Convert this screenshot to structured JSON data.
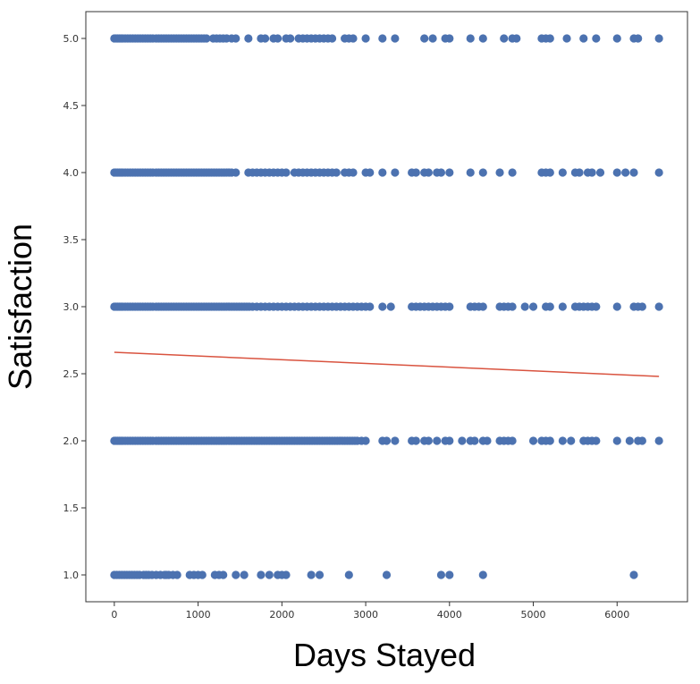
{
  "chart_data": {
    "type": "scatter",
    "title": "",
    "xlabel": "Days Stayed",
    "ylabel": "Satisfaction",
    "xlim": [
      -340,
      6840
    ],
    "ylim": [
      0.8,
      5.2
    ],
    "xticks": [
      0,
      1000,
      2000,
      3000,
      4000,
      5000,
      6000
    ],
    "xtick_labels": [
      "0",
      "1000",
      "2000",
      "3000",
      "4000",
      "5000",
      "6000"
    ],
    "yticks": [
      1.0,
      1.5,
      2.0,
      2.5,
      3.0,
      3.5,
      4.0,
      4.5,
      5.0
    ],
    "ytick_labels": [
      "1.0",
      "1.5",
      "2.0",
      "2.5",
      "3.0",
      "3.5",
      "4.0",
      "4.5",
      "5.0"
    ],
    "grid": false,
    "marker_color": "#4c72b0",
    "line_color": "#d9533f",
    "series": [
      {
        "y": 5,
        "x": [
          0,
          20,
          40,
          60,
          80,
          100,
          130,
          160,
          190,
          220,
          250,
          280,
          310,
          340,
          370,
          400,
          430,
          460,
          500,
          530,
          560,
          590,
          620,
          650,
          680,
          710,
          740,
          770,
          800,
          830,
          860,
          890,
          920,
          950,
          980,
          1010,
          1040,
          1070,
          1100,
          1180,
          1220,
          1260,
          1300,
          1340,
          1400,
          1450,
          1600,
          1750,
          1800,
          1900,
          1950,
          2050,
          2100,
          2200,
          2250,
          2300,
          2350,
          2400,
          2450,
          2500,
          2550,
          2600,
          2750,
          2800,
          2850,
          3000,
          3200,
          3350,
          3700,
          3800,
          3950,
          4000,
          4250,
          4400,
          4650,
          4750,
          4800,
          5100,
          5150,
          5200,
          5400,
          5600,
          5750,
          6000,
          6200,
          6250,
          6500
        ]
      },
      {
        "y": 4,
        "x": [
          0,
          20,
          40,
          60,
          80,
          100,
          130,
          160,
          190,
          220,
          250,
          280,
          310,
          340,
          370,
          400,
          430,
          460,
          500,
          530,
          560,
          590,
          620,
          650,
          680,
          710,
          740,
          770,
          800,
          830,
          860,
          890,
          920,
          950,
          980,
          1010,
          1040,
          1070,
          1100,
          1130,
          1160,
          1190,
          1220,
          1250,
          1280,
          1310,
          1340,
          1370,
          1400,
          1450,
          1600,
          1650,
          1700,
          1750,
          1800,
          1850,
          1900,
          1950,
          2000,
          2050,
          2150,
          2200,
          2250,
          2300,
          2350,
          2400,
          2450,
          2500,
          2550,
          2600,
          2650,
          2750,
          2800,
          2850,
          3000,
          3050,
          3200,
          3350,
          3550,
          3600,
          3700,
          3750,
          3850,
          3900,
          4000,
          4250,
          4400,
          4600,
          4750,
          5100,
          5150,
          5200,
          5350,
          5500,
          5550,
          5650,
          5700,
          5800,
          6000,
          6100,
          6200,
          6500
        ]
      },
      {
        "y": 3,
        "x": [
          0,
          20,
          40,
          60,
          80,
          100,
          130,
          160,
          190,
          220,
          250,
          280,
          310,
          340,
          370,
          400,
          430,
          460,
          500,
          530,
          560,
          590,
          620,
          650,
          680,
          710,
          740,
          770,
          800,
          830,
          860,
          890,
          920,
          950,
          980,
          1010,
          1040,
          1070,
          1100,
          1130,
          1160,
          1190,
          1220,
          1250,
          1280,
          1310,
          1340,
          1370,
          1400,
          1430,
          1460,
          1490,
          1520,
          1550,
          1580,
          1610,
          1650,
          1700,
          1750,
          1800,
          1850,
          1900,
          1950,
          2000,
          2050,
          2100,
          2150,
          2200,
          2250,
          2300,
          2350,
          2400,
          2450,
          2500,
          2550,
          2600,
          2650,
          2700,
          2750,
          2800,
          2850,
          2900,
          2950,
          3000,
          3050,
          3200,
          3300,
          3550,
          3600,
          3650,
          3700,
          3750,
          3800,
          3850,
          3900,
          3950,
          4000,
          4250,
          4300,
          4350,
          4400,
          4600,
          4650,
          4700,
          4750,
          4900,
          5000,
          5150,
          5200,
          5350,
          5500,
          5550,
          5600,
          5650,
          5700,
          5750,
          6000,
          6200,
          6250,
          6300,
          6500
        ]
      },
      {
        "y": 2,
        "x": [
          0,
          20,
          40,
          60,
          80,
          100,
          130,
          160,
          190,
          220,
          250,
          280,
          310,
          340,
          370,
          400,
          430,
          460,
          500,
          530,
          560,
          590,
          620,
          650,
          680,
          710,
          740,
          770,
          800,
          830,
          860,
          890,
          920,
          950,
          980,
          1010,
          1040,
          1070,
          1100,
          1130,
          1160,
          1190,
          1220,
          1250,
          1280,
          1310,
          1340,
          1370,
          1400,
          1430,
          1460,
          1490,
          1520,
          1550,
          1580,
          1610,
          1640,
          1670,
          1700,
          1730,
          1760,
          1790,
          1820,
          1850,
          1880,
          1910,
          1940,
          1970,
          2000,
          2030,
          2060,
          2090,
          2120,
          2150,
          2180,
          2210,
          2240,
          2270,
          2300,
          2330,
          2360,
          2390,
          2420,
          2450,
          2480,
          2510,
          2540,
          2570,
          2600,
          2630,
          2660,
          2690,
          2720,
          2750,
          2780,
          2810,
          2840,
          2870,
          2900,
          2950,
          3000,
          3200,
          3250,
          3350,
          3550,
          3600,
          3700,
          3750,
          3850,
          3950,
          4000,
          4150,
          4250,
          4300,
          4400,
          4450,
          4600,
          4650,
          4700,
          4750,
          5000,
          5100,
          5150,
          5200,
          5350,
          5450,
          5600,
          5650,
          5700,
          5750,
          6000,
          6150,
          6250,
          6300,
          6500
        ]
      },
      {
        "y": 1,
        "x": [
          0,
          30,
          60,
          90,
          120,
          150,
          180,
          210,
          240,
          270,
          300,
          350,
          380,
          410,
          450,
          500,
          550,
          600,
          620,
          650,
          700,
          750,
          900,
          950,
          1000,
          1050,
          1200,
          1250,
          1300,
          1450,
          1550,
          1750,
          1850,
          1950,
          2000,
          2050,
          2350,
          2450,
          2800,
          3250,
          3900,
          4000,
          4400,
          6200
        ]
      }
    ],
    "trend_line": {
      "x": [
        0,
        6500
      ],
      "y": [
        2.66,
        2.48
      ]
    }
  }
}
